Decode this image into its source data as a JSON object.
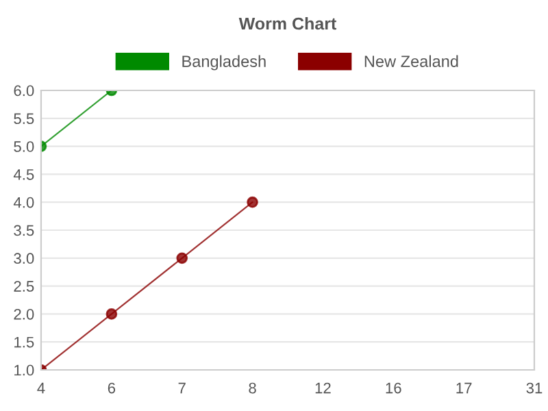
{
  "chart_data": {
    "type": "line",
    "title": "Worm Chart",
    "categories": [
      "4",
      "6",
      "7",
      "8",
      "12",
      "16",
      "17",
      "31"
    ],
    "series": [
      {
        "name": "Bangladesh",
        "color": "#008a00",
        "values": [
          5.0,
          6.0,
          null,
          null,
          null,
          null,
          null,
          null
        ]
      },
      {
        "name": "New Zealand",
        "color": "#8b0000",
        "values": [
          1.0,
          2.0,
          3.0,
          4.0,
          null,
          null,
          null,
          null
        ]
      }
    ],
    "ylim": [
      1.0,
      6.0
    ],
    "yticks": [
      {
        "value": 1.0,
        "label": "1.0"
      },
      {
        "value": 1.5,
        "label": "1.5"
      },
      {
        "value": 2.0,
        "label": "2.0"
      },
      {
        "value": 2.5,
        "label": "2.5"
      },
      {
        "value": 3.0,
        "label": "3.0"
      },
      {
        "value": 3.5,
        "label": "3.5"
      },
      {
        "value": 4.0,
        "label": "4.0"
      },
      {
        "value": 4.5,
        "label": "4.5"
      },
      {
        "value": 5.0,
        "label": "5.0"
      },
      {
        "value": 5.5,
        "label": "5.5"
      },
      {
        "value": 6.0,
        "label": "6.0"
      }
    ],
    "grid": "y",
    "legend": "top",
    "marker": "circle",
    "line_style": "solid"
  }
}
